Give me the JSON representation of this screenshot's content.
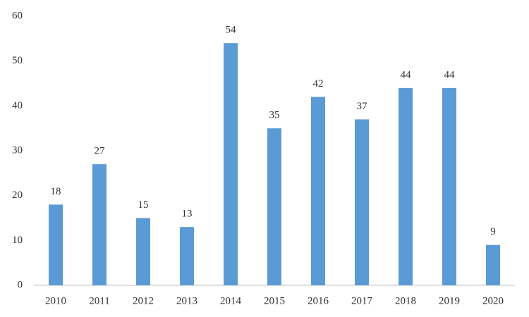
{
  "chart_data": {
    "type": "bar",
    "categories": [
      "2010",
      "2011",
      "2012",
      "2013",
      "2014",
      "2015",
      "2016",
      "2017",
      "2018",
      "2019",
      "2020"
    ],
    "values": [
      18,
      27,
      15,
      13,
      54,
      35,
      42,
      37,
      44,
      44,
      9
    ],
    "color": "#5b9bd5",
    "ylim": [
      0,
      60
    ],
    "yticks": [
      0,
      10,
      20,
      30,
      40,
      50,
      60
    ],
    "grid": false,
    "data_labels": true
  }
}
